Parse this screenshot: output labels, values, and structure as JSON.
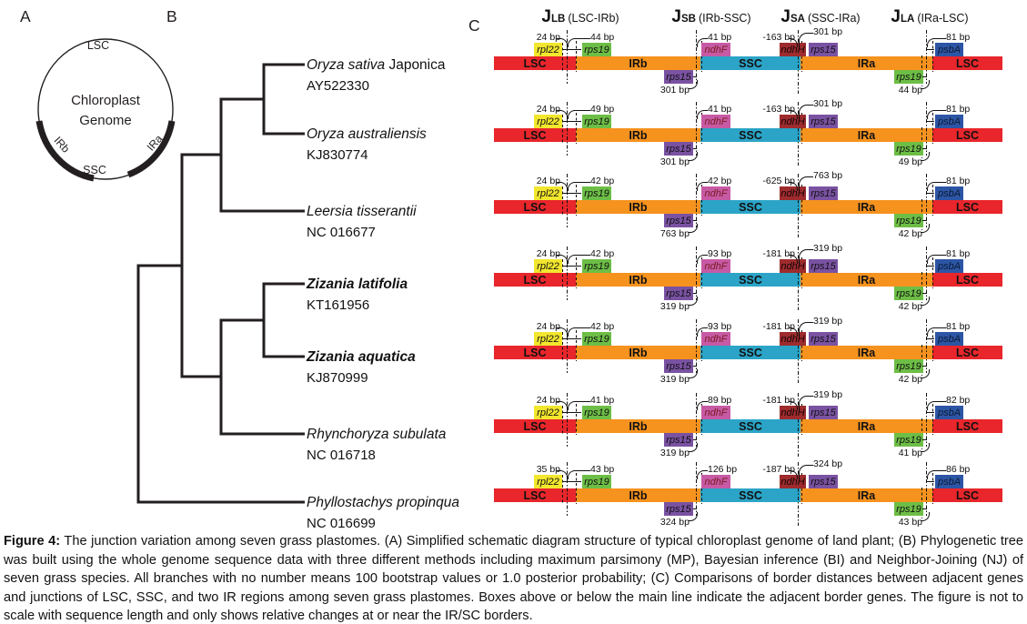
{
  "panels": {
    "a": "A",
    "b": "B",
    "c": "C"
  },
  "panelA": {
    "top_label": "LSC",
    "center_line1": "Chloroplast",
    "center_line2": "Genome",
    "left_arc_label": "IRb",
    "right_arc_label": "IRa",
    "bottom_label": "SSC"
  },
  "tree": {
    "species": [
      {
        "italic": "Oryza sativa",
        "roman": " Japonica",
        "accession": "AY522330",
        "em": false
      },
      {
        "italic": "Oryza australiensis",
        "roman": "",
        "accession": "KJ830774",
        "em": false
      },
      {
        "italic": "Leersia tisserantii",
        "roman": "",
        "accession": "NC 016677",
        "em": false
      },
      {
        "italic": "Zizania latifolia",
        "roman": "",
        "accession": "KT161956",
        "em": true
      },
      {
        "italic": "Zizania aquatica",
        "roman": "",
        "accession": "KJ870999",
        "em": true
      },
      {
        "italic": "Rhynchoryza subulata",
        "roman": "",
        "accession": "NC 016718",
        "em": false
      },
      {
        "italic": "Phyllostachys propinqua",
        "roman": "",
        "accession": "NC 016699",
        "em": false
      }
    ]
  },
  "panelC": {
    "junction_headers": [
      {
        "j": "J",
        "sub": "LB",
        "region": "(LSC-IRb)"
      },
      {
        "j": "J",
        "sub": "SB",
        "region": "(IRb-SSC)"
      },
      {
        "j": "J",
        "sub": "SA",
        "region": "(SSC-IRa)"
      },
      {
        "j": "J",
        "sub": "LA",
        "region": "(IRa-LSC)"
      }
    ],
    "segments": {
      "lsc_left": "LSC",
      "irb": "IRb",
      "ssc": "SSC",
      "ira": "IRa",
      "lsc_right": "LSC"
    },
    "genes": {
      "jlb_left": "rpl22",
      "jlb_right": "rps19",
      "jsb_above": "ndhF",
      "jsb_below": "rps15",
      "jsa_left": "ndhH",
      "jsa_right": "rps15",
      "jla_above": "psbA",
      "jla_below": "rps19"
    },
    "rows": [
      {
        "species": "Oryza sativa Japonica",
        "bp": {
          "jlb_left": "24 bp",
          "jlb_right": "44 bp",
          "jsb_above": "41 bp",
          "jsb_below": "301 bp",
          "jsa_left": "-163 bp",
          "jsa_right": "301 bp",
          "jla_above": "81 bp",
          "jla_below": "44 bp"
        }
      },
      {
        "species": "Oryza australiensis",
        "bp": {
          "jlb_left": "24 bp",
          "jlb_right": "49 bp",
          "jsb_above": "41 bp",
          "jsb_below": "301 bp",
          "jsa_left": "-163 bp",
          "jsa_right": "301 bp",
          "jla_above": "81 bp",
          "jla_below": "49 bp"
        }
      },
      {
        "species": "Leersia tisserantii",
        "bp": {
          "jlb_left": "24 bp",
          "jlb_right": "42 bp",
          "jsb_above": "42 bp",
          "jsb_below": "763 bp",
          "jsa_left": "-625 bp",
          "jsa_right": "763 bp",
          "jla_above": "81 bp",
          "jla_below": "42 bp"
        }
      },
      {
        "species": "Zizania latifolia",
        "bp": {
          "jlb_left": "24 bp",
          "jlb_right": "42 bp",
          "jsb_above": "93 bp",
          "jsb_below": "319 bp",
          "jsa_left": "-181 bp",
          "jsa_right": "319 bp",
          "jla_above": "81 bp",
          "jla_below": "42 bp"
        }
      },
      {
        "species": "Zizania aquatica",
        "bp": {
          "jlb_left": "24 bp",
          "jlb_right": "42 bp",
          "jsb_above": "93 bp",
          "jsb_below": "319 bp",
          "jsa_left": "-181 bp",
          "jsa_right": "319 bp",
          "jla_above": "81 bp",
          "jla_below": "42 bp"
        }
      },
      {
        "species": "Rhynchoryza subulata",
        "bp": {
          "jlb_left": "24 bp",
          "jlb_right": "41 bp",
          "jsb_above": "89 bp",
          "jsb_below": "319 bp",
          "jsa_left": "-181 bp",
          "jsa_right": "319 bp",
          "jla_above": "82 bp",
          "jla_below": "41 bp"
        }
      },
      {
        "species": "Phyllostachys propinqua",
        "bp": {
          "jlb_left": "35 bp",
          "jlb_right": "43 bp",
          "jsb_above": "126 bp",
          "jsb_below": "324 bp",
          "jsa_left": "-187 bp",
          "jsa_right": "324 bp",
          "jla_above": "86 bp",
          "jla_below": "43 bp"
        }
      }
    ]
  },
  "colors": {
    "lsc": "#e8262b",
    "ir": "#f6921e",
    "ssc": "#2ba4c7",
    "rpl22": "#f2e62e",
    "rps19": "#6dbe46",
    "ndhF": "#c75aa4",
    "rps15": "#7a52a2",
    "ndhH": "#9e2b2d",
    "psbA": "#2d55a5",
    "line": "#231f20"
  },
  "caption": {
    "prefix": "Figure 4:",
    "body": " The junction variation among seven grass plastomes. (A) Simplified schematic diagram structure of typical chloroplast genome of land plant; (B) Phylogenetic tree was built using the whole genome sequence data with three different methods including maximum parsimony (MP), Bayesian inference (BI) and Neighbor-Joining (NJ) of seven grass species. All branches with no number means 100 bootstrap values or 1.0 posterior probability; (C) Comparisons of border distances between adjacent genes and junctions of LSC, SSC, and two IR regions among seven grass plastomes. Boxes above or below the main line indicate the adjacent border genes. The figure is not to scale with sequence length and only shows relative changes at or near the IR/SC borders."
  }
}
